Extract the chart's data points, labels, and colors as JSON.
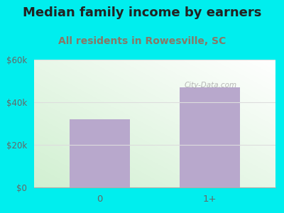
{
  "title": "Median family income by earners",
  "subtitle": "All residents in Rowesville, SC",
  "categories": [
    "0",
    "1+"
  ],
  "values": [
    32000,
    47000
  ],
  "bar_color": "#b8a8cc",
  "background_outer": "#00eeee",
  "ylim": [
    0,
    60000
  ],
  "yticks": [
    0,
    20000,
    40000,
    60000
  ],
  "ytick_labels": [
    "$0",
    "$20k",
    "$40k",
    "$60k"
  ],
  "title_fontsize": 13,
  "subtitle_fontsize": 10,
  "title_color": "#222222",
  "subtitle_color": "#887766",
  "tick_color": "#666666",
  "watermark": "City-Data.com",
  "grid_color": "#dddddd"
}
